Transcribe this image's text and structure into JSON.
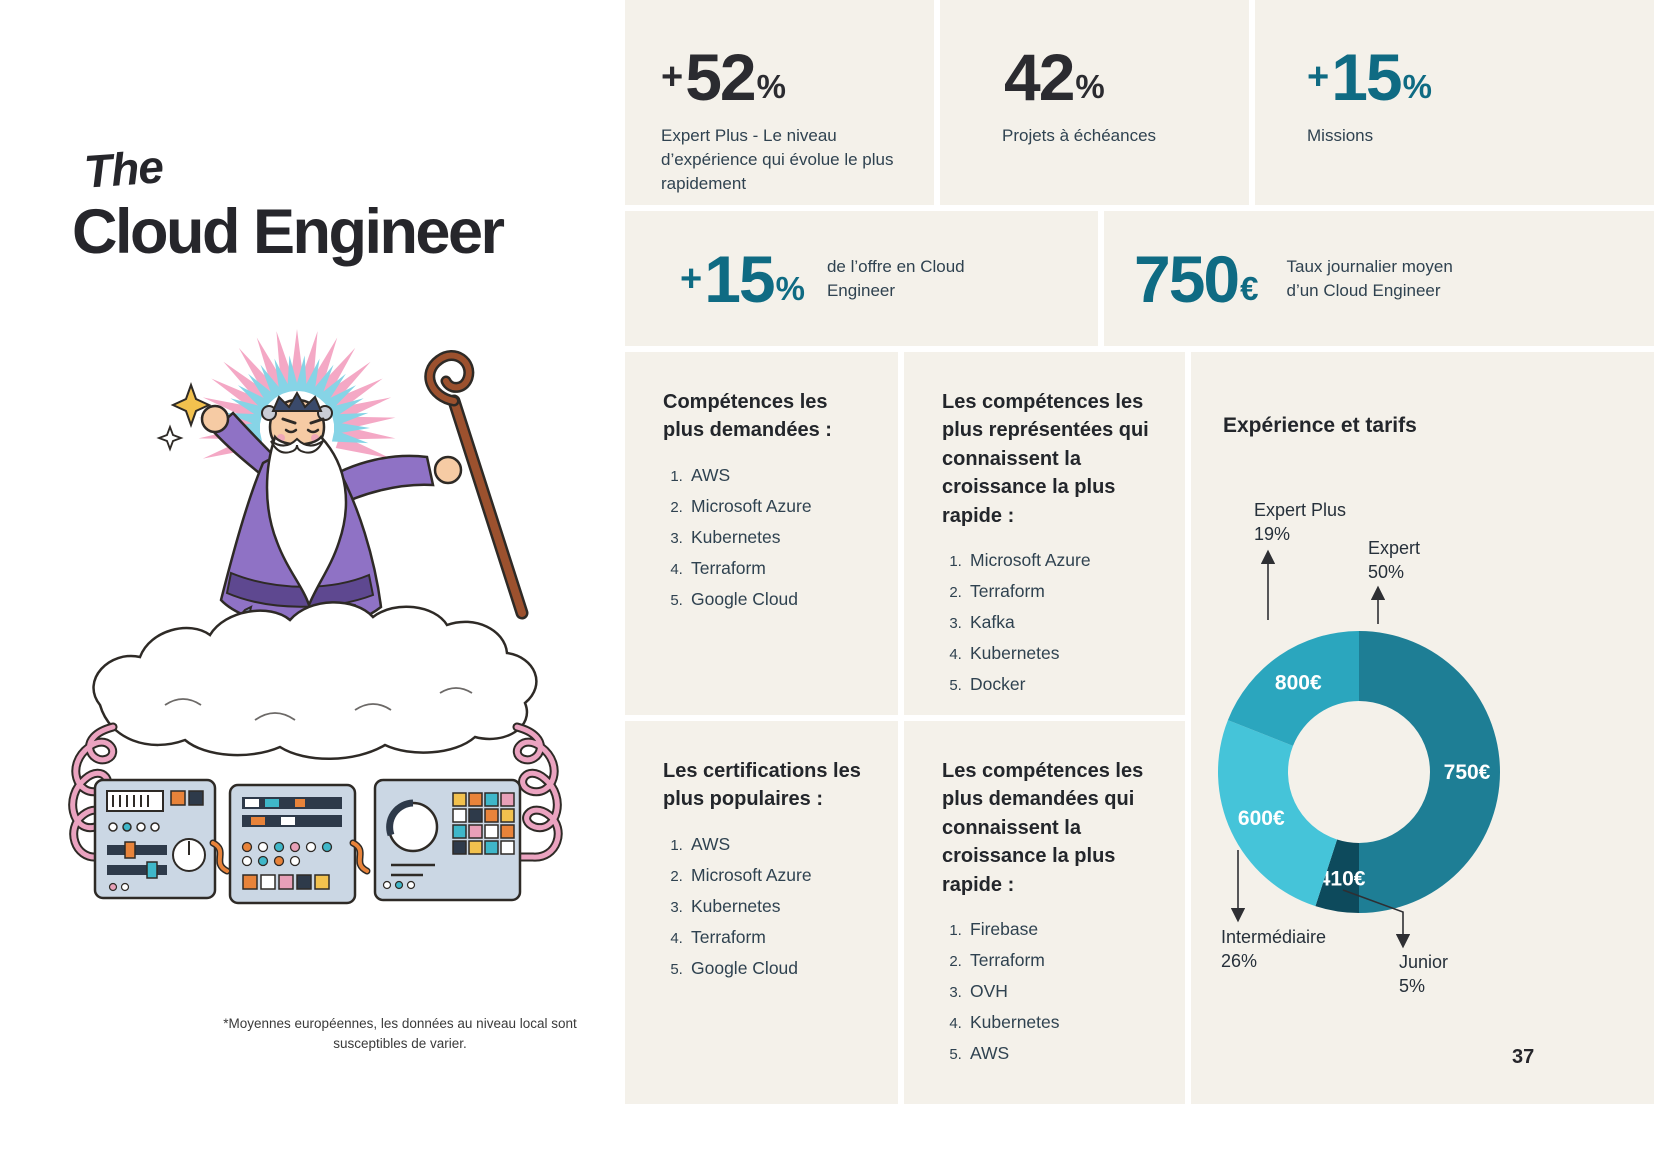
{
  "page": {
    "number": "37",
    "footnote": "*Moyennes européennes, les données au niveau local sont susceptibles de varier."
  },
  "title": {
    "pre": "The",
    "main": "Cloud Engineer"
  },
  "stats": {
    "expert_plus_growth": {
      "prefix": "+",
      "value": "52",
      "unit": "%",
      "label": "Expert Plus - Le niveau d’expérience qui évolue le plus rapidement"
    },
    "projects": {
      "prefix": "",
      "value": "42",
      "unit": "%",
      "label": "Projets à échéances"
    },
    "missions": {
      "prefix": "+",
      "value": "15",
      "unit": "%",
      "label": "Missions"
    },
    "offer_growth": {
      "prefix": "+",
      "value": "15",
      "unit": "%",
      "label": "de l’offre en Cloud Engineer"
    },
    "daily_rate": {
      "prefix": "",
      "value": "750",
      "unit": "€",
      "label": "Taux journalier moyen d’un Cloud Engineer"
    }
  },
  "lists": [
    {
      "title": "Compétences les plus demandées :",
      "items": [
        "AWS",
        "Microsoft Azure",
        "Kubernetes",
        "Terraform",
        "Google Cloud"
      ]
    },
    {
      "title": "Les compétences les plus représentées qui connaissent la croissance la plus rapide :",
      "items": [
        "Microsoft Azure",
        "Terraform",
        "Kafka",
        "Kubernetes",
        "Docker"
      ]
    },
    {
      "title": "Les certifications les plus populaires :",
      "items": [
        "AWS",
        "Microsoft Azure",
        "Kubernetes",
        "Terraform",
        "Google Cloud"
      ]
    },
    {
      "title": "Les compétences les plus demandées qui connaissent la croissance la plus rapide :",
      "items": [
        "Firebase",
        "Terraform",
        "OVH",
        "Kubernetes",
        "AWS"
      ]
    }
  ],
  "chart_data": {
    "type": "pie",
    "subtype": "donut",
    "title": "Expérience et tarifs",
    "start_angle_deg": 0,
    "direction": "clockwise",
    "inner_radius_ratio": 0.5,
    "segments": [
      {
        "label": "Expert",
        "percent": 50,
        "percent_label": "50%",
        "rate": "750€",
        "color": "#1E7E95"
      },
      {
        "label": "Junior",
        "percent": 5,
        "percent_label": "5%",
        "rate": "410€",
        "color": "#0D4A5C"
      },
      {
        "label": "Intermédiaire",
        "percent": 26,
        "percent_label": "26%",
        "rate": "600€",
        "color": "#45C4D9"
      },
      {
        "label": "Expert Plus",
        "percent": 19,
        "percent_label": "19%",
        "rate": "800€",
        "color": "#2BA6BE"
      }
    ]
  },
  "colors": {
    "accent_teal": "#0F6B83",
    "dark": "#2B2B30",
    "card_bg": "#F4F1EA"
  }
}
